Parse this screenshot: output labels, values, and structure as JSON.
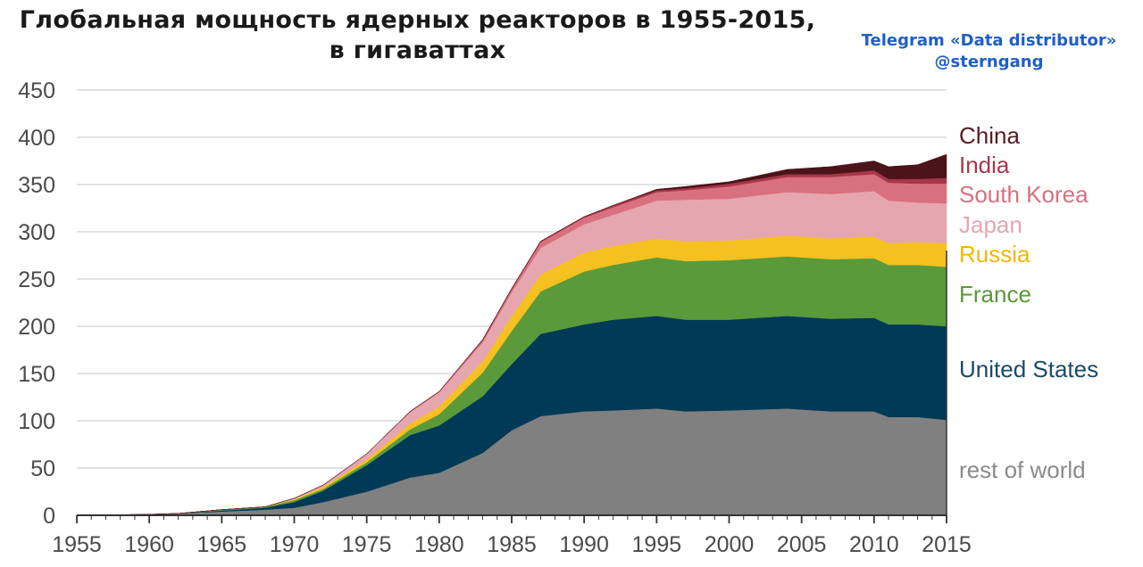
{
  "header": {
    "title_line1": "Глобальная мощность ядерных реакторов в 1955-2015,",
    "title_line2": "в гигаваттах"
  },
  "credit": {
    "line1": "Telegram «Data distributor»",
    "line2": "@sterngang"
  },
  "chart_data": {
    "type": "area",
    "stacked": true,
    "title": "Глобальная мощность ядерных реакторов в 1955-2015, в гигаваттах",
    "xlabel": "",
    "ylabel": "",
    "xlim": [
      1955,
      2015
    ],
    "ylim": [
      0,
      450
    ],
    "grid": true,
    "legend_placement": "right",
    "x_ticks": [
      1955,
      1960,
      1965,
      1970,
      1975,
      1980,
      1985,
      1990,
      1995,
      2000,
      2005,
      2010,
      2015
    ],
    "y_ticks": [
      0,
      50,
      100,
      150,
      200,
      250,
      300,
      350,
      400,
      450
    ],
    "x": [
      1955,
      1960,
      1962,
      1965,
      1968,
      1970,
      1972,
      1975,
      1978,
      1980,
      1983,
      1985,
      1987,
      1990,
      1992,
      1995,
      1997,
      2000,
      2004,
      2007,
      2010,
      2011,
      2013,
      2015
    ],
    "series": [
      {
        "name": "rest of world",
        "color": "#808080",
        "values": [
          0,
          1,
          2,
          4,
          6,
          8,
          14,
          25,
          40,
          45,
          66,
          90,
          105,
          110,
          111,
          113,
          110,
          111,
          113,
          110,
          110,
          104,
          104,
          101
        ]
      },
      {
        "name": "United States",
        "color": "#003a57",
        "values": [
          0,
          0,
          0,
          1,
          2,
          6,
          12,
          28,
          45,
          50,
          60,
          70,
          87,
          92,
          96,
          98,
          97,
          96,
          98,
          98,
          99,
          98,
          98,
          99
        ]
      },
      {
        "name": "France",
        "color": "#5a9a3a",
        "values": [
          0,
          0,
          0,
          1,
          1,
          2,
          2,
          3,
          6,
          12,
          25,
          35,
          45,
          56,
          58,
          62,
          62,
          63,
          63,
          63,
          63,
          63,
          63,
          63
        ]
      },
      {
        "name": "Russia",
        "color": "#f5c120",
        "values": [
          0,
          0,
          0,
          0,
          0,
          1,
          2,
          3,
          6,
          8,
          12,
          16,
          18,
          20,
          20,
          20,
          21,
          21,
          22,
          22,
          23,
          23,
          24,
          25
        ]
      },
      {
        "name": "Japan",
        "color": "#e6a6af",
        "values": [
          0,
          0,
          0,
          0,
          0,
          1,
          2,
          6,
          12,
          15,
          20,
          25,
          28,
          30,
          33,
          40,
          44,
          44,
          46,
          47,
          48,
          45,
          42,
          42
        ]
      },
      {
        "name": "South Korea",
        "color": "#d9707f",
        "values": [
          0,
          0,
          0,
          0,
          0,
          0,
          0,
          0,
          1,
          1,
          2,
          3,
          6,
          7,
          8,
          9,
          10,
          13,
          16,
          18,
          18,
          19,
          20,
          21
        ]
      },
      {
        "name": "India",
        "color": "#a8364a",
        "values": [
          0,
          0,
          0,
          0,
          0,
          0,
          0,
          0,
          0,
          0,
          1,
          1,
          1,
          1,
          2,
          2,
          2,
          3,
          3,
          3,
          4,
          4,
          5,
          6
        ]
      },
      {
        "name": "China",
        "color": "#4a1419",
        "values": [
          0,
          0,
          0,
          0,
          0,
          0,
          0,
          0,
          0,
          0,
          0,
          0,
          0,
          0,
          0,
          1,
          2,
          2,
          5,
          8,
          10,
          13,
          15,
          25
        ]
      }
    ],
    "legend": [
      "China",
      "India",
      "South Korea",
      "Japan",
      "Russia",
      "France",
      "United States",
      "rest of world"
    ]
  }
}
